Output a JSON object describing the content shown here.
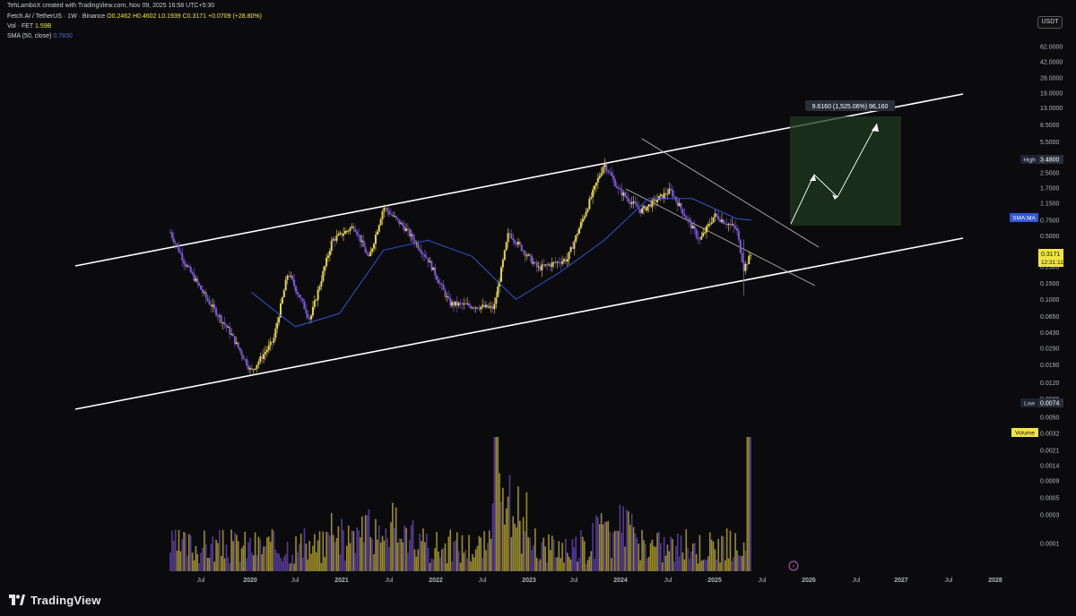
{
  "header": {
    "credit": "TehLamboX created with TradingView.com, Nov 09, 2025 16:58 UTC+5:30",
    "symbol": "Fetch.AI / TetherUS · 1W · Binance",
    "ohlc": "O0.2462 H0.4602 L0.1939 C0.3171 +0.0709 (+28.80%)",
    "vol_label": "Vol · FET",
    "vol_value": "1.59B",
    "sma_label": "SMA (50, close)",
    "sma_value": "0.7830"
  },
  "currency": "USDT",
  "brand": "TradingView",
  "price_axis": {
    "ticks": [
      "62.0000",
      "42.0000",
      "28.0000",
      "19.0000",
      "13.0000",
      "8.5000",
      "5.5000",
      "3.5000",
      "2.5000",
      "1.7000",
      "1.1500",
      "0.7500",
      "0.5000",
      "0.3300",
      "0.2300",
      "0.1500",
      "0.1000",
      "0.0650",
      "0.0430",
      "0.0290",
      "0.0190",
      "0.0120",
      "0.0080",
      "0.0050"
    ],
    "high_label": "High",
    "high_value": "3.4800",
    "low_label": "Low",
    "low_value": "0.0074",
    "sma_tag": "SMA:MA",
    "last_price": "0.3171",
    "countdown": "12:31:11",
    "volume_tag": "Volume",
    "volume_ticks": [
      "0.0032",
      "0.0021",
      "0.0014",
      "0.0009",
      "0.0005",
      "0.0003",
      "0.0001"
    ]
  },
  "annotations": {
    "target_label": "9.6160 (1,525.06%) 96,160"
  },
  "colors": {
    "bull": "#e6d44a",
    "bear": "#7e5bd6",
    "sma": "#2f56d6",
    "channel": "#ffffff",
    "target_box": "#1f3a1f",
    "background": "#0b0b0d"
  },
  "chart_data": {
    "type": "candlestick",
    "interval": "1W",
    "x_axis": [
      "Jul",
      "2020",
      "Jul",
      "2021",
      "Jul",
      "2022",
      "Jul",
      "2023",
      "Jul",
      "2024",
      "Jul",
      "2025",
      "Jul",
      "2026",
      "Jul",
      "2027",
      "Jul",
      "2028"
    ],
    "y_scale": "log",
    "ylim": [
      0.005,
      62
    ],
    "price_path": [
      [
        "2019-04",
        0.55
      ],
      [
        "2019-06",
        0.25
      ],
      [
        "2019-09",
        0.1
      ],
      [
        "2019-12",
        0.045
      ],
      [
        "2020-03",
        0.016
      ],
      [
        "2020-06",
        0.035
      ],
      [
        "2020-08",
        0.2
      ],
      [
        "2020-11",
        0.06
      ],
      [
        "2021-02",
        0.45
      ],
      [
        "2021-05",
        0.65
      ],
      [
        "2021-07",
        0.28
      ],
      [
        "2021-09",
        1.05
      ],
      [
        "2021-12",
        0.6
      ],
      [
        "2022-03",
        0.28
      ],
      [
        "2022-06",
        0.09
      ],
      [
        "2022-12",
        0.08
      ],
      [
        "2023-02",
        0.55
      ],
      [
        "2023-06",
        0.22
      ],
      [
        "2023-10",
        0.28
      ],
      [
        "2024-03",
        3.2
      ],
      [
        "2024-05",
        1.6
      ],
      [
        "2024-08",
        0.95
      ],
      [
        "2024-12",
        1.6
      ],
      [
        "2025-04",
        0.45
      ],
      [
        "2025-06",
        0.85
      ],
      [
        "2025-09",
        0.6
      ],
      [
        "2025-10",
        0.22
      ],
      [
        "2025-11",
        0.3171
      ]
    ],
    "sma_path": [
      [
        "2020-03",
        0.12
      ],
      [
        "2020-09",
        0.05
      ],
      [
        "2021-03",
        0.07
      ],
      [
        "2021-09",
        0.35
      ],
      [
        "2022-03",
        0.45
      ],
      [
        "2022-09",
        0.3
      ],
      [
        "2023-03",
        0.1
      ],
      [
        "2023-09",
        0.2
      ],
      [
        "2024-03",
        0.45
      ],
      [
        "2024-09",
        1.3
      ],
      [
        "2025-03",
        1.3
      ],
      [
        "2025-09",
        0.78
      ],
      [
        "2025-11",
        0.75
      ]
    ],
    "high": 3.48,
    "low": 0.0074,
    "last": 0.3171,
    "target": 9.616
  }
}
